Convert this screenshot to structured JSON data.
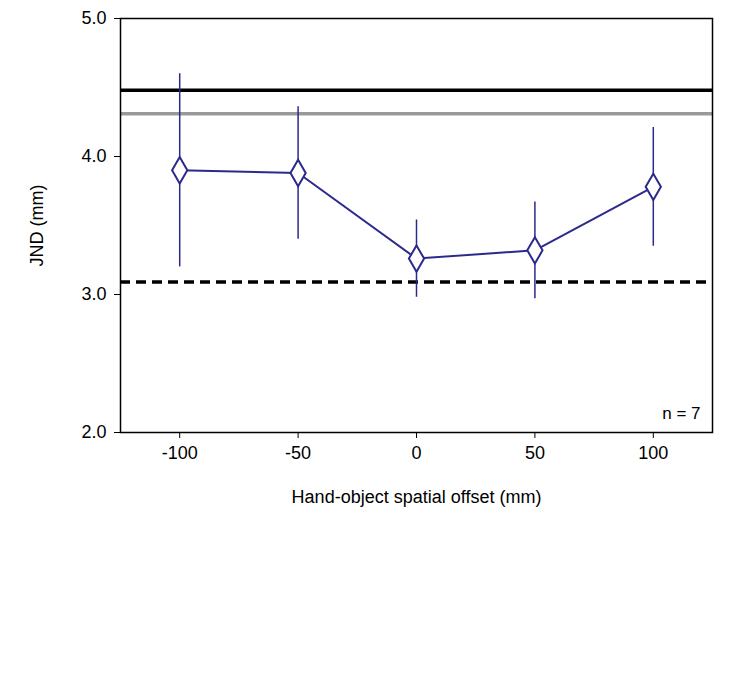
{
  "chart_data": {
    "type": "line",
    "x_label": "Hand-object spatial offset (mm)",
    "y_label": "JND (mm)",
    "x": [
      -100,
      -50,
      0,
      50,
      100
    ],
    "series": [
      {
        "name": null,
        "color": "#2b2a8c",
        "marker": "diamond",
        "line_style": "solid",
        "values": [
          3.9,
          3.88,
          3.26,
          3.32,
          3.78
        ],
        "error": [
          0.7,
          0.48,
          0.28,
          0.35,
          0.43
        ]
      }
    ],
    "reference_lines": [
      {
        "value": 4.48,
        "color": "#000000",
        "line_style": "solid"
      },
      {
        "value": 4.31,
        "color": "#999999",
        "line_style": "solid"
      },
      {
        "value": 3.09,
        "color": "#000000",
        "line_style": "dashed"
      }
    ],
    "annotations": [
      "n = 7"
    ],
    "xlim": [
      -125,
      125
    ],
    "xticks": [
      -100,
      -50,
      0,
      50,
      100
    ],
    "ylim": [
      2,
      5
    ],
    "yticks": [
      {
        "value": 2,
        "label": "2.0"
      },
      {
        "value": 3,
        "label": "3.0"
      },
      {
        "value": 4,
        "label": "4.0"
      },
      {
        "value": 5,
        "label": "5.0"
      }
    ],
    "grid": false
  }
}
